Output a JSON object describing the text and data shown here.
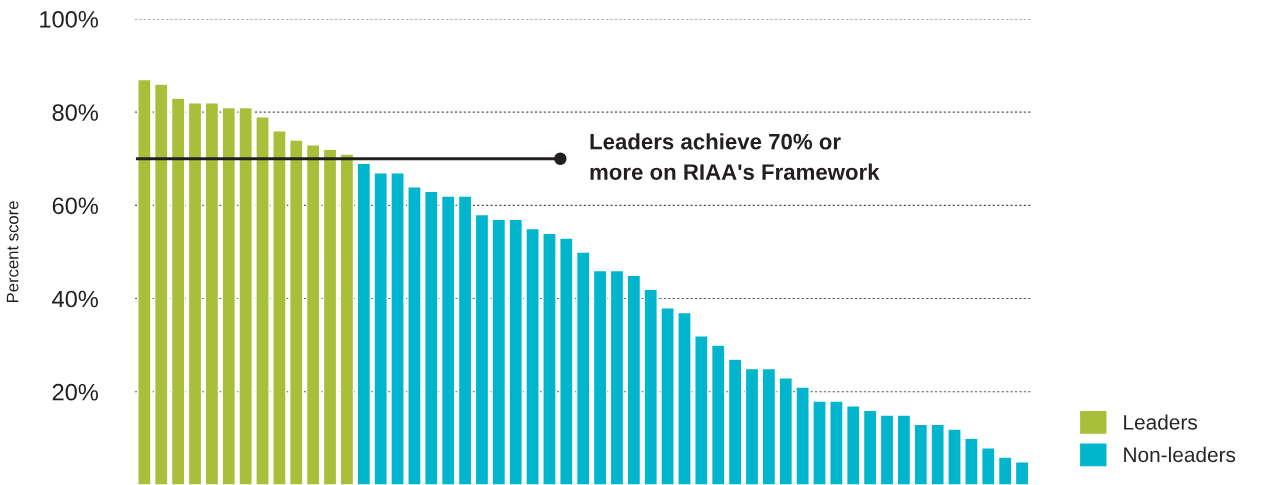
{
  "chart_data": {
    "type": "bar",
    "ylabel": "Percent score",
    "categories": [
      null,
      null,
      null,
      null,
      null,
      null,
      null,
      null,
      null,
      null,
      null,
      null,
      null,
      null,
      null,
      null,
      null,
      null,
      null,
      null,
      null,
      null,
      null,
      null,
      null,
      null,
      null,
      null,
      null,
      null,
      null,
      null,
      null,
      null,
      null,
      null,
      null,
      null,
      null,
      null,
      null,
      null,
      null,
      null,
      null,
      null,
      null,
      null,
      null,
      null,
      null,
      null,
      null
    ],
    "series": [
      {
        "name": "Leaders",
        "color": "#a8bf3a",
        "values": [
          87,
          86,
          83,
          82,
          82,
          81,
          81,
          79,
          76,
          74,
          73,
          72,
          71,
          null,
          null,
          null,
          null,
          null,
          null,
          null,
          null,
          null,
          null,
          null,
          null,
          null,
          null,
          null,
          null,
          null,
          null,
          null,
          null,
          null,
          null,
          null,
          null,
          null,
          null,
          null,
          null,
          null,
          null,
          null,
          null,
          null,
          null,
          null,
          null,
          null,
          null,
          null,
          null
        ]
      },
      {
        "name": "Non-leaders",
        "color": "#00b5cc",
        "values": [
          null,
          null,
          null,
          null,
          null,
          null,
          null,
          null,
          null,
          null,
          null,
          null,
          null,
          69,
          67,
          67,
          64,
          63,
          62,
          62,
          58,
          57,
          57,
          55,
          54,
          53,
          50,
          46,
          46,
          45,
          42,
          38,
          37,
          32,
          30,
          27,
          25,
          25,
          23,
          21,
          18,
          18,
          17,
          16,
          15,
          15,
          13,
          13,
          12,
          10,
          8,
          6,
          5
        ]
      }
    ],
    "ylim": [
      0,
      100
    ],
    "yticks": [
      {
        "value": 20,
        "label": "20%"
      },
      {
        "value": 40,
        "label": "40%"
      },
      {
        "value": 60,
        "label": "60%"
      },
      {
        "value": 80,
        "label": "80%"
      },
      {
        "value": 100,
        "label": "100%"
      }
    ],
    "ref_lines": [
      {
        "axis": "y",
        "value": 70,
        "label": "Leaders achieve 70% or\nmore on RIAA's Framework",
        "color": "#231f20"
      }
    ],
    "grid": "y",
    "legend": "bottom right",
    "tick_labels": "y"
  }
}
